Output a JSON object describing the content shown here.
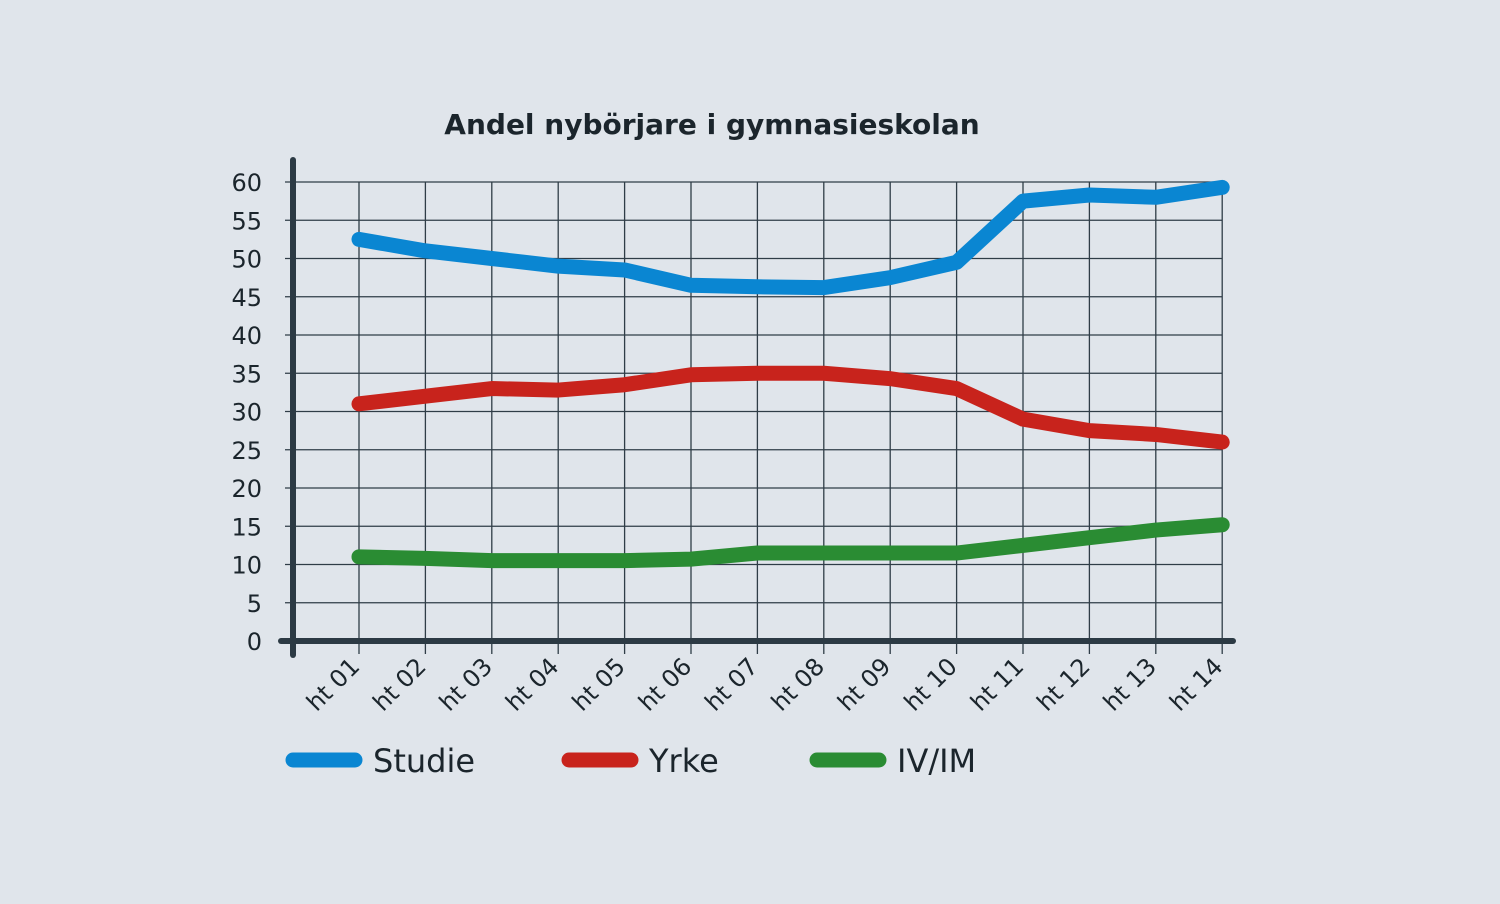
{
  "colors": {
    "background": "#e0e5eb",
    "axis": "#2c3a44",
    "grid": "#2f3d47",
    "text": "#1b252c"
  },
  "chart_data": {
    "type": "line",
    "title": "Andel nybörjare i gymnasieskolan",
    "xlabel": "",
    "ylabel": "",
    "categories": [
      "ht 01",
      "ht 02",
      "ht 03",
      "ht 04",
      "ht 05",
      "ht 06",
      "ht 07",
      "ht 08",
      "ht 09",
      "ht 10",
      "ht 11",
      "ht 12",
      "ht 13",
      "ht 14"
    ],
    "ylim": [
      0,
      60
    ],
    "yticks": [
      "0",
      "5",
      "10",
      "15",
      "20",
      "25",
      "30",
      "35",
      "40",
      "45",
      "50",
      "55",
      "60"
    ],
    "grid": true,
    "legend": "bottom",
    "series": [
      {
        "name": "Studie",
        "color": "#0a86d2",
        "values": [
          52.5,
          51,
          50,
          49,
          48.5,
          46.5,
          46.3,
          46.2,
          47.5,
          49.5,
          57.5,
          58.3,
          58,
          59.3
        ]
      },
      {
        "name": "Yrke",
        "color": "#c8231c",
        "values": [
          31,
          32,
          33,
          32.8,
          33.5,
          34.8,
          35,
          35,
          34.3,
          33,
          29,
          27.5,
          27,
          26
        ]
      },
      {
        "name": "IV/IM",
        "color": "#2a8c33",
        "values": [
          11,
          10.8,
          10.5,
          10.5,
          10.5,
          10.7,
          11.5,
          11.5,
          11.5,
          11.5,
          12.5,
          13.5,
          14.5,
          15.2
        ]
      }
    ]
  }
}
